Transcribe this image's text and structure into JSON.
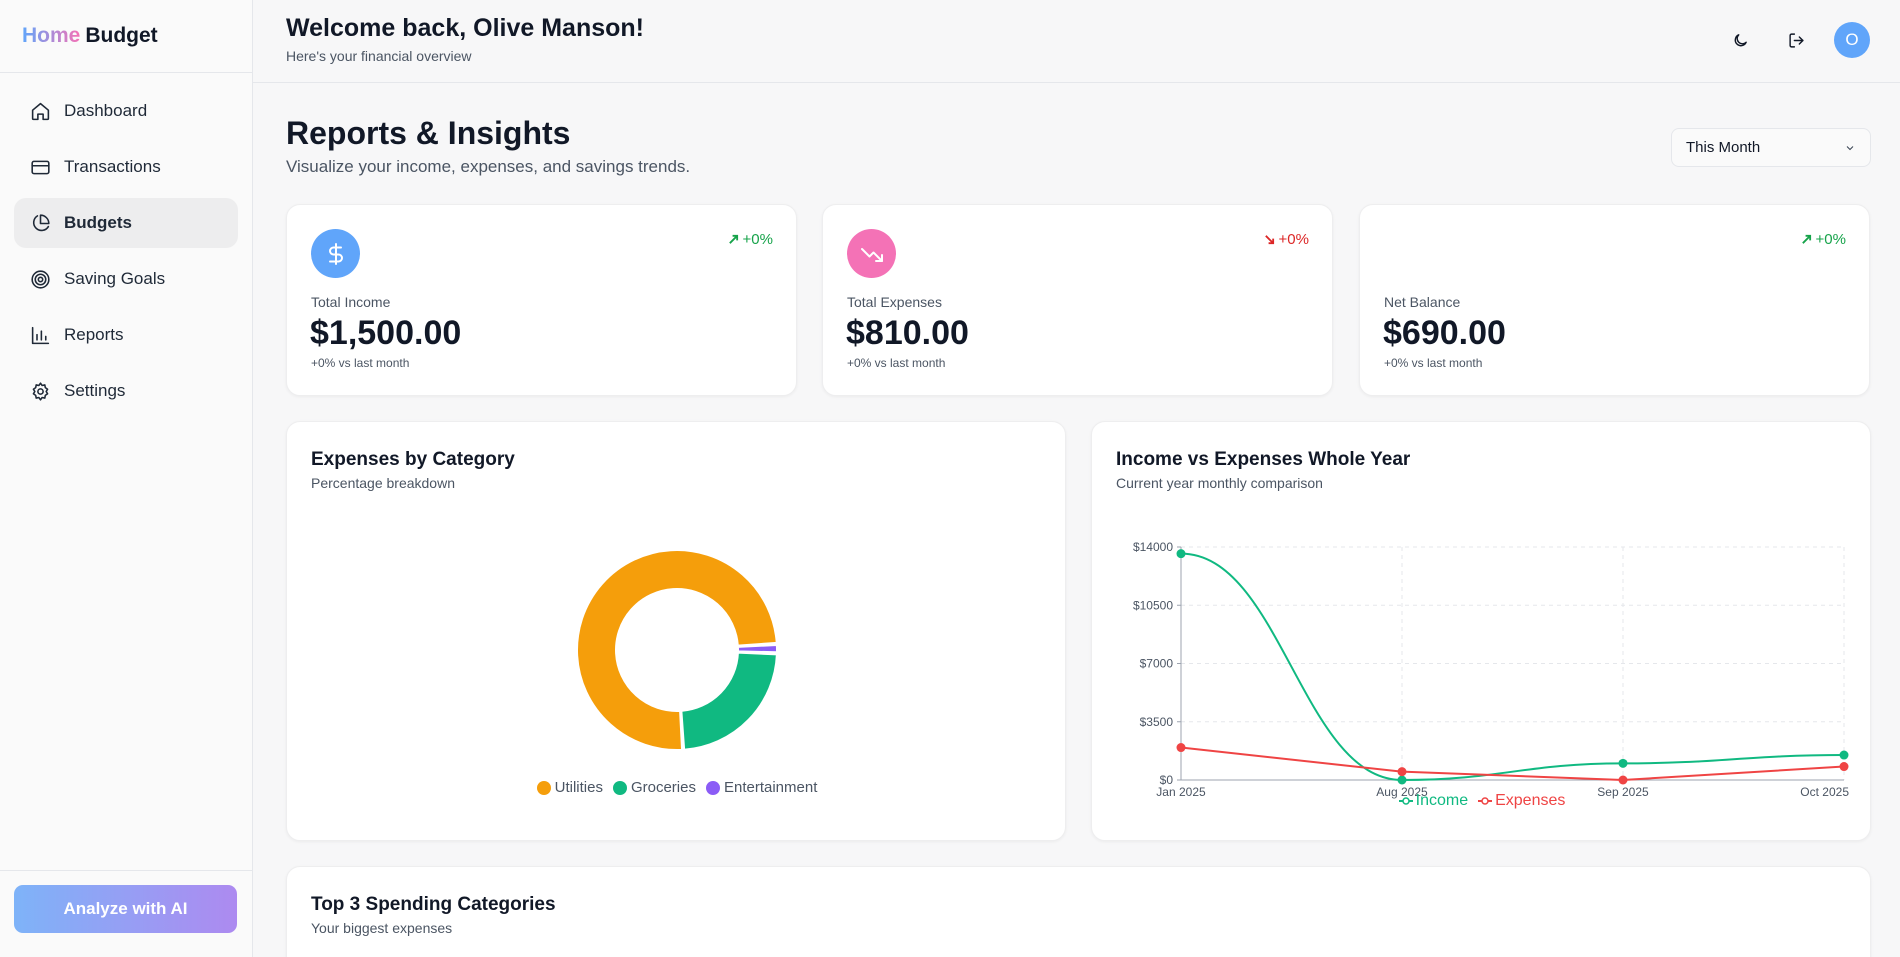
{
  "brand": {
    "home": "Home",
    "budget": "Budget"
  },
  "nav": [
    {
      "label": "Dashboard",
      "icon": "home-icon"
    },
    {
      "label": "Transactions",
      "icon": "credit-card-icon"
    },
    {
      "label": "Budgets",
      "icon": "pie-chart-icon",
      "active": true
    },
    {
      "label": "Saving Goals",
      "icon": "target-icon"
    },
    {
      "label": "Reports",
      "icon": "bar-chart-icon"
    },
    {
      "label": "Settings",
      "icon": "gear-icon"
    }
  ],
  "sidebar": {
    "ai_button": "Analyze with AI"
  },
  "header": {
    "welcome": "Welcome back, Olive Manson!",
    "subtitle": "Here's your financial overview",
    "avatar_initial": "O"
  },
  "page": {
    "title": "Reports & Insights",
    "subtitle": "Visualize your income, expenses, and savings trends.",
    "period": "This Month"
  },
  "stats": [
    {
      "label": "Total Income",
      "value": "$1,500.00",
      "note": "+0% vs last month",
      "trend": "+0%",
      "trend_dir": "up",
      "icon": "dollar-icon",
      "color": "#60a5fa"
    },
    {
      "label": "Total Expenses",
      "value": "$810.00",
      "note": "+0% vs last month",
      "trend": "+0%",
      "trend_dir": "down",
      "icon": "trending-down-icon",
      "color": "#f472b6"
    },
    {
      "label": "Net Balance",
      "value": "$690.00",
      "note": "+0% vs last month",
      "trend": "+0%",
      "trend_dir": "up",
      "icon": "",
      "color": ""
    }
  ],
  "donut_card": {
    "title": "Expenses by Category",
    "subtitle": "Percentage breakdown"
  },
  "line_card": {
    "title": "Income vs Expenses Whole Year",
    "subtitle": "Current year monthly comparison"
  },
  "bottom_card": {
    "title": "Top 3 Spending Categories",
    "subtitle": "Your biggest expenses"
  },
  "chart_data": [
    {
      "type": "pie",
      "categories": [
        "Utilities",
        "Groceries",
        "Entertainment"
      ],
      "values": [
        75,
        23.5,
        1.5
      ],
      "colors": [
        "#f59e0b",
        "#10b981",
        "#8b5cf6"
      ],
      "legend": "bottom"
    },
    {
      "type": "line",
      "x": [
        "Jan 2025",
        "Aug 2025",
        "Sep 2025",
        "Oct 2025"
      ],
      "series": [
        {
          "name": "Income",
          "values": [
            13600,
            0,
            1000,
            1500
          ],
          "color": "#10b981",
          "curve": "smooth"
        },
        {
          "name": "Expenses",
          "values": [
            1950,
            500,
            0,
            810
          ],
          "color": "#ef4444",
          "curve": "straight"
        }
      ],
      "ylim": [
        0,
        14000
      ],
      "yticks": [
        "$0",
        "$3500",
        "$7000",
        "$10500",
        "$14000"
      ],
      "ytick_values": [
        0,
        3500,
        7000,
        10500,
        14000
      ],
      "grid": true,
      "legend": "bottom"
    }
  ]
}
